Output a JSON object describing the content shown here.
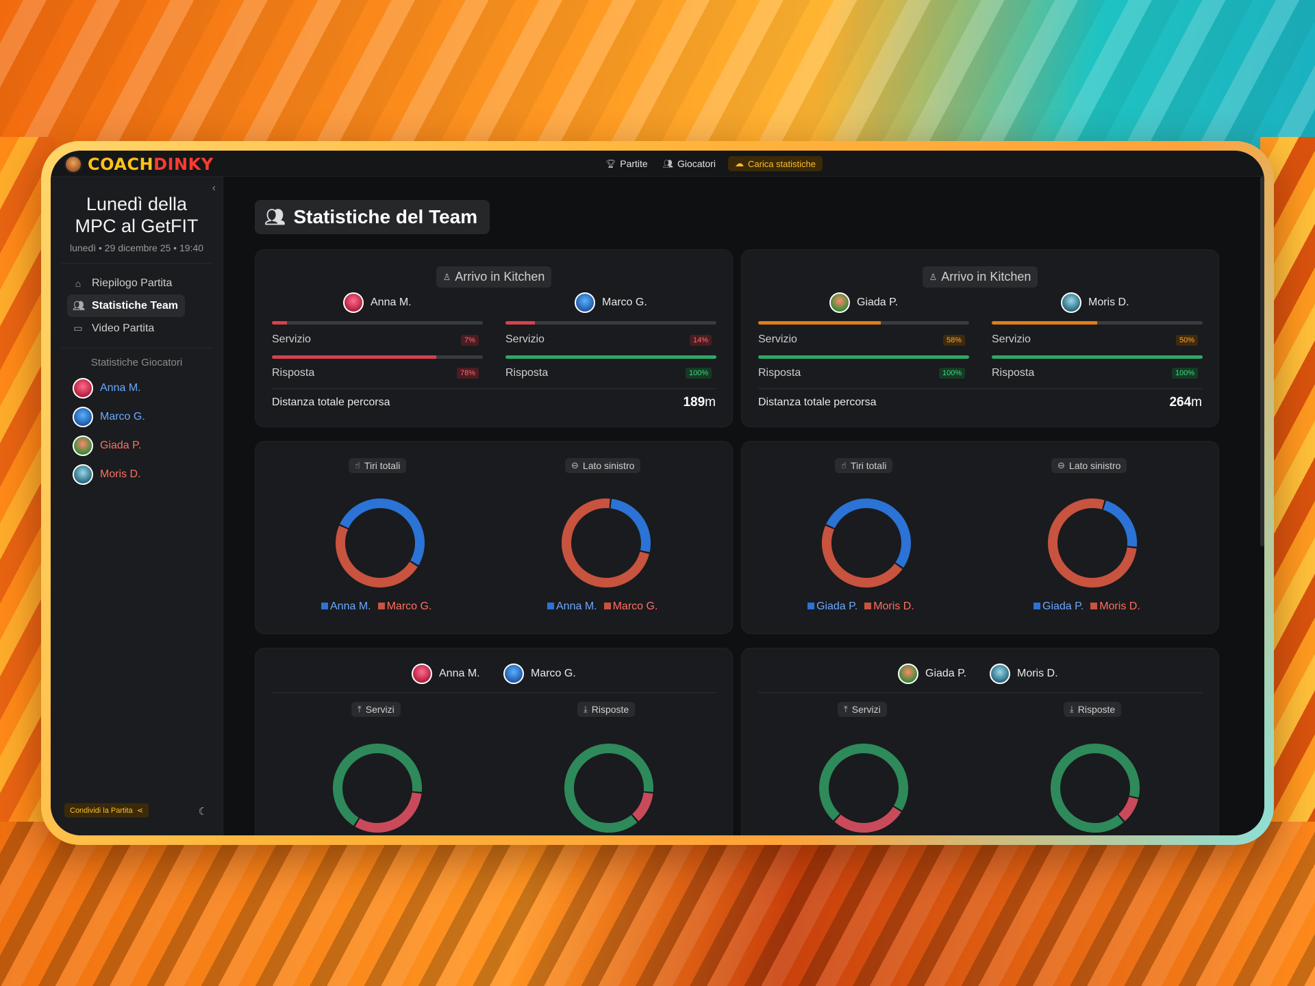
{
  "app": {
    "logo_part1": "COACH",
    "logo_part2": "DINKY"
  },
  "nav": {
    "matches": "Partite",
    "players": "Giocatori",
    "upload": "Carica statistiche"
  },
  "sidebar": {
    "title": "Lunedì della MPC al GetFIT",
    "date": "lunedì • 29 dicembre 25 • 19:40",
    "menu": [
      {
        "label": "Riepilogo Partita",
        "icon": "home-icon"
      },
      {
        "label": "Statistiche Team",
        "icon": "users-icon"
      },
      {
        "label": "Video Partita",
        "icon": "video-icon"
      }
    ],
    "players_title": "Statistiche Giocatori",
    "players": [
      "Anna M.",
      "Marco G.",
      "Giada P.",
      "Moris D."
    ],
    "share": "Condividi la Partita"
  },
  "page": {
    "title": "Statistiche del Team"
  },
  "teams": [
    {
      "kitchen_title": "Arrivo in Kitchen",
      "players": [
        {
          "name": "Anna M.",
          "serve_label": "Servizio",
          "serve_pct": 7,
          "serve_badge": "7%",
          "return_label": "Risposta",
          "return_pct": 78,
          "return_badge": "78%"
        },
        {
          "name": "Marco G.",
          "serve_label": "Servizio",
          "serve_pct": 14,
          "serve_badge": "14%",
          "return_label": "Risposta",
          "return_pct": 100,
          "return_badge": "100%"
        }
      ],
      "distance_label": "Distanza totale percorsa",
      "distance_value": "189",
      "distance_unit": "m",
      "shots_title": "Tiri totali",
      "left_title": "Lato sinistro",
      "shots_split": [
        0.52,
        0.48
      ],
      "left_split": [
        0.27,
        0.73
      ],
      "legend": [
        "Anna M.",
        "Marco G."
      ],
      "serves_title": "Servizi",
      "returns_title": "Risposte",
      "serves_split": [
        0.68,
        0.32
      ],
      "returns_split": [
        0.88,
        0.12
      ]
    },
    {
      "kitchen_title": "Arrivo in Kitchen",
      "players": [
        {
          "name": "Giada P.",
          "serve_label": "Servizio",
          "serve_pct": 58,
          "serve_badge": "58%",
          "return_label": "Risposta",
          "return_pct": 100,
          "return_badge": "100%"
        },
        {
          "name": "Moris D.",
          "serve_label": "Servizio",
          "serve_pct": 50,
          "serve_badge": "50%",
          "return_label": "Risposta",
          "return_pct": 100,
          "return_badge": "100%"
        }
      ],
      "distance_label": "Distanza totale percorsa",
      "distance_value": "264",
      "distance_unit": "m",
      "shots_title": "Tiri totali",
      "left_title": "Lato sinistro",
      "shots_split": [
        0.53,
        0.47
      ],
      "left_split": [
        0.22,
        0.78
      ],
      "legend": [
        "Giada P.",
        "Moris D."
      ],
      "serves_title": "Servizi",
      "returns_title": "Risposte",
      "serves_split": [
        0.72,
        0.28
      ],
      "returns_split": [
        0.9,
        0.1
      ]
    }
  ],
  "colors": {
    "blue": "#2b73d6",
    "red": "#c8533f",
    "green": "#2e8a5a",
    "pink_red": "#c94b5b",
    "bar_red": "#d6414f",
    "bar_green": "#2fa866",
    "bar_orange": "#e07d18"
  }
}
